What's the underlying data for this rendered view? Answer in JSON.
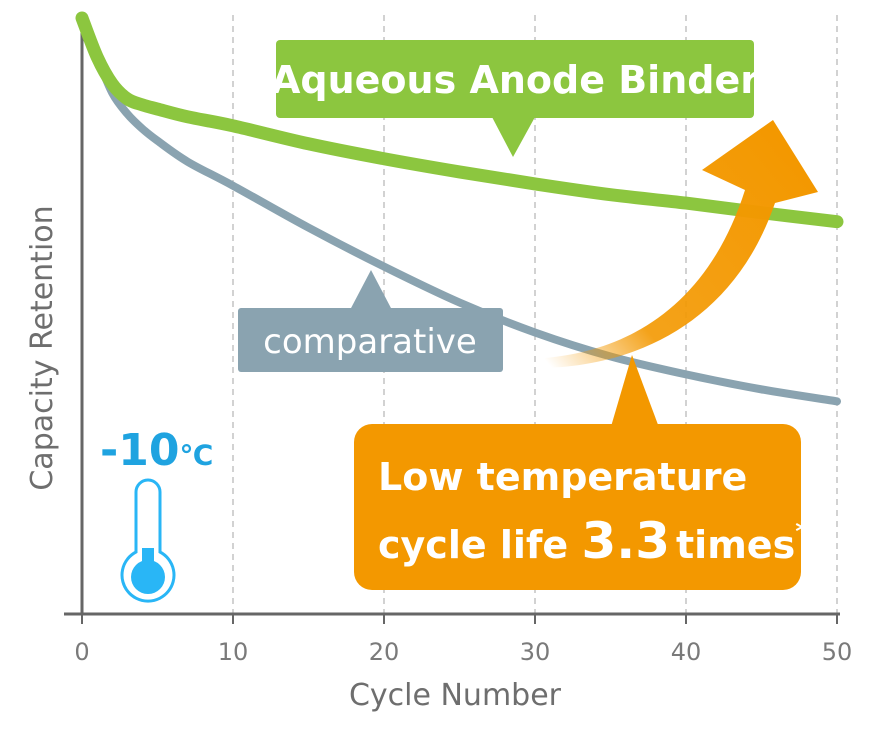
{
  "chart_data": {
    "type": "line",
    "title": "",
    "xlabel": "Cycle Number",
    "ylabel": "Capacity Retention",
    "xlim": [
      0,
      50
    ],
    "ylim": [
      0,
      100
    ],
    "x_ticks": [
      "0",
      "10",
      "20",
      "30",
      "40",
      "50"
    ],
    "grid": "vertical-dashed",
    "series": [
      {
        "name": "Aqueous Anode Binder",
        "color": "#8cc63f",
        "x": [
          0,
          1,
          2,
          3,
          4,
          5,
          7,
          10,
          15,
          20,
          25,
          30,
          35,
          40,
          45,
          50
        ],
        "y": [
          99.5,
          93,
          88.5,
          86,
          85,
          84.3,
          83,
          81.5,
          78.5,
          76,
          73.8,
          71.8,
          70,
          68.6,
          67,
          65.5
        ]
      },
      {
        "name": "comparative",
        "color": "#8aa3b0",
        "x": [
          0,
          1,
          2,
          3,
          4,
          5,
          7,
          10,
          15,
          20,
          25,
          30,
          35,
          40,
          45,
          50
        ],
        "y": [
          99.5,
          93,
          87,
          83.5,
          81,
          79,
          75.5,
          71.5,
          64.5,
          58,
          52,
          47,
          43,
          40,
          37.5,
          35.5
        ]
      }
    ],
    "annotations": {
      "green_callout": "Aqueous Anode Binder",
      "gray_callout": "comparative",
      "temperature": "-10",
      "temperature_unit": "℃",
      "result_line1": "Low temperature",
      "result_line2_prefix": "cycle life ",
      "result_value": "3.3",
      "result_suffix": "times",
      "result_marker": "*"
    },
    "colors": {
      "green": "#8cc63f",
      "gray_blue": "#8aa3b0",
      "orange": "#f39800",
      "thermo_blue": "#29b6f6",
      "temp_text": "#1fa3e0"
    }
  }
}
